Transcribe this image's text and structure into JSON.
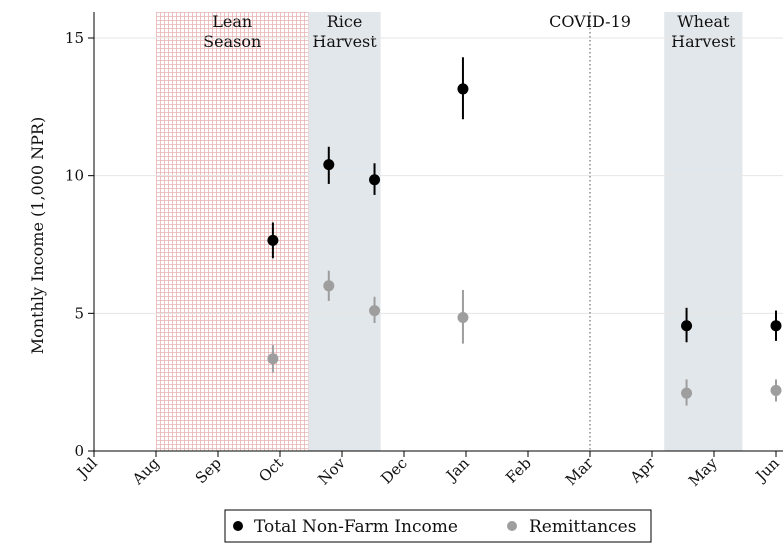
{
  "chart_data": {
    "type": "scatter",
    "title": "",
    "ylabel": "Monthly Income (1,000 NPR)",
    "xlabel": "",
    "ylim": [
      0,
      16
    ],
    "yticks": [
      0,
      5,
      10,
      15
    ],
    "x_month_labels": [
      "Jul",
      "Aug",
      "Sep",
      "Oct",
      "Nov",
      "Dec",
      "Jan",
      "Feb",
      "Mar",
      "Apr",
      "May",
      "Jun"
    ],
    "grid": "horizontal",
    "legend_position": "bottom",
    "shaded_periods": [
      {
        "label_lines": [
          "Lean",
          "Season"
        ],
        "start": "Aug 1",
        "end": "Oct 15",
        "style": "hatched",
        "color": "#e8b3b3"
      },
      {
        "label_lines": [
          "Rice",
          "Harvest"
        ],
        "start": "Oct 15",
        "end": "Nov 20",
        "style": "solid",
        "color": "#e2e7eb"
      },
      {
        "label_lines": [
          "Wheat",
          "Harvest"
        ],
        "start": "Apr 7",
        "end": "May 15",
        "style": "solid",
        "color": "#e2e7eb"
      }
    ],
    "events": [
      {
        "label": "COVID-19",
        "date": "Mar 1"
      }
    ],
    "series": [
      {
        "name": "Total Non-Farm Income",
        "color": "#000000",
        "points": [
          {
            "x": "Sep 28",
            "y": 7.65,
            "lo": 7.0,
            "hi": 8.3
          },
          {
            "x": "Oct 25",
            "y": 10.4,
            "lo": 9.7,
            "hi": 11.05
          },
          {
            "x": "Nov 17",
            "y": 9.85,
            "lo": 9.3,
            "hi": 10.45
          },
          {
            "x": "Dec 30",
            "y": 13.15,
            "lo": 12.05,
            "hi": 14.3
          },
          {
            "x": "Apr 18",
            "y": 4.55,
            "lo": 3.95,
            "hi": 5.2
          },
          {
            "x": "Jun 1",
            "y": 4.55,
            "lo": 4.0,
            "hi": 5.1
          }
        ]
      },
      {
        "name": "Remittances",
        "color": "#9e9e9e",
        "points": [
          {
            "x": "Sep 28",
            "y": 3.35,
            "lo": 2.85,
            "hi": 3.85
          },
          {
            "x": "Oct 25",
            "y": 6.0,
            "lo": 5.45,
            "hi": 6.55
          },
          {
            "x": "Nov 17",
            "y": 5.1,
            "lo": 4.65,
            "hi": 5.6
          },
          {
            "x": "Dec 30",
            "y": 4.85,
            "lo": 3.9,
            "hi": 5.85
          },
          {
            "x": "Apr 18",
            "y": 2.1,
            "lo": 1.65,
            "hi": 2.6
          },
          {
            "x": "Jun 1",
            "y": 2.2,
            "lo": 1.8,
            "hi": 2.6
          }
        ]
      }
    ]
  }
}
